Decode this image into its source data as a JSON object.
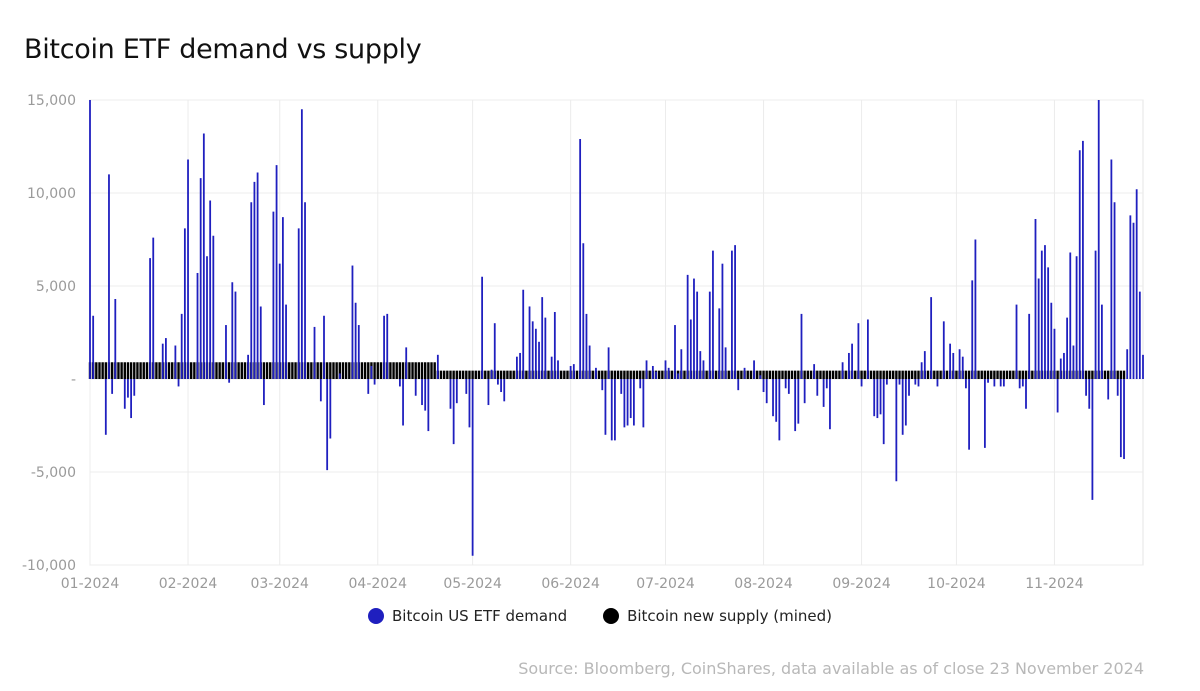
{
  "chart_data": {
    "type": "bar",
    "title": "Bitcoin ETF demand vs supply",
    "source": "Source: Bloomberg, CoinShares, data available as of close 23 November 2024",
    "ylim": [
      -10000,
      15000
    ],
    "y_ticks": [
      {
        "value": 15000,
        "label": "15,000"
      },
      {
        "value": 10000,
        "label": "10,000"
      },
      {
        "value": 5000,
        "label": "5,000"
      },
      {
        "value": 0,
        "label": "-"
      },
      {
        "value": -5000,
        "label": "-5,000"
      },
      {
        "value": -10000,
        "label": "-10,000"
      }
    ],
    "x_range": [
      "2024-01-01",
      "2024-11-23"
    ],
    "x_ticks": [
      {
        "date": "2024-01-01",
        "label": "01-2024"
      },
      {
        "date": "2024-02-01",
        "label": "02-2024"
      },
      {
        "date": "2024-03-01",
        "label": "03-2024"
      },
      {
        "date": "2024-04-01",
        "label": "04-2024"
      },
      {
        "date": "2024-05-01",
        "label": "05-2024"
      },
      {
        "date": "2024-06-01",
        "label": "06-2024"
      },
      {
        "date": "2024-07-01",
        "label": "07-2024"
      },
      {
        "date": "2024-08-01",
        "label": "08-2024"
      },
      {
        "date": "2024-09-01",
        "label": "09-2024"
      },
      {
        "date": "2024-10-01",
        "label": "10-2024"
      },
      {
        "date": "2024-11-01",
        "label": "11-2024"
      }
    ],
    "series": [
      {
        "name": "Bitcoin US ETF demand",
        "color": "#1f1fbf",
        "points": [
          [
            "2024-01-01",
            15000
          ],
          [
            "2024-01-02",
            3400
          ],
          [
            "2024-01-06",
            -3000
          ],
          [
            "2024-01-07",
            11000
          ],
          [
            "2024-01-08",
            -800
          ],
          [
            "2024-01-09",
            4300
          ],
          [
            "2024-01-12",
            -1600
          ],
          [
            "2024-01-13",
            -1000
          ],
          [
            "2024-01-14",
            -2100
          ],
          [
            "2024-01-15",
            -900
          ],
          [
            "2024-01-20",
            6500
          ],
          [
            "2024-01-21",
            7600
          ],
          [
            "2024-01-24",
            1900
          ],
          [
            "2024-01-25",
            2200
          ],
          [
            "2024-01-28",
            1800
          ],
          [
            "2024-01-29",
            -400
          ],
          [
            "2024-01-30",
            3500
          ],
          [
            "2024-01-31",
            8100
          ],
          [
            "2024-02-01",
            11800
          ],
          [
            "2024-02-04",
            5700
          ],
          [
            "2024-02-05",
            10800
          ],
          [
            "2024-02-06",
            13200
          ],
          [
            "2024-02-07",
            6600
          ],
          [
            "2024-02-08",
            9600
          ],
          [
            "2024-02-09",
            7700
          ],
          [
            "2024-02-13",
            2900
          ],
          [
            "2024-02-14",
            -200
          ],
          [
            "2024-02-15",
            5200
          ],
          [
            "2024-02-16",
            4700
          ],
          [
            "2024-02-20",
            1300
          ],
          [
            "2024-02-21",
            9500
          ],
          [
            "2024-02-22",
            10600
          ],
          [
            "2024-02-23",
            11100
          ],
          [
            "2024-02-24",
            3900
          ],
          [
            "2024-02-25",
            -1400
          ],
          [
            "2024-02-28",
            9000
          ],
          [
            "2024-02-29",
            11500
          ],
          [
            "2024-03-01",
            6200
          ],
          [
            "2024-03-02",
            8700
          ],
          [
            "2024-03-03",
            4000
          ],
          [
            "2024-03-07",
            8100
          ],
          [
            "2024-03-08",
            14500
          ],
          [
            "2024-03-09",
            9500
          ],
          [
            "2024-03-12",
            2800
          ],
          [
            "2024-03-14",
            -1200
          ],
          [
            "2024-03-15",
            3400
          ],
          [
            "2024-03-16",
            -4900
          ],
          [
            "2024-03-17",
            -3200
          ],
          [
            "2024-03-20",
            300
          ],
          [
            "2024-03-24",
            6100
          ],
          [
            "2024-03-25",
            4100
          ],
          [
            "2024-03-26",
            2900
          ],
          [
            "2024-03-29",
            -800
          ],
          [
            "2024-03-30",
            700
          ],
          [
            "2024-03-31",
            -300
          ],
          [
            "2024-04-03",
            3400
          ],
          [
            "2024-04-04",
            3500
          ],
          [
            "2024-04-08",
            -400
          ],
          [
            "2024-04-09",
            -2500
          ],
          [
            "2024-04-10",
            1700
          ],
          [
            "2024-04-13",
            -900
          ],
          [
            "2024-04-15",
            -1400
          ],
          [
            "2024-04-16",
            -1700
          ],
          [
            "2024-04-17",
            -2800
          ],
          [
            "2024-04-20",
            1300
          ],
          [
            "2024-04-24",
            -1600
          ],
          [
            "2024-04-25",
            -3500
          ],
          [
            "2024-04-26",
            -1300
          ],
          [
            "2024-04-29",
            -800
          ],
          [
            "2024-04-30",
            -2600
          ],
          [
            "2024-05-01",
            -9500
          ],
          [
            "2024-05-04",
            5500
          ],
          [
            "2024-05-06",
            -1400
          ],
          [
            "2024-05-07",
            500
          ],
          [
            "2024-05-08",
            3000
          ],
          [
            "2024-05-09",
            -300
          ],
          [
            "2024-05-10",
            -700
          ],
          [
            "2024-05-11",
            -1200
          ],
          [
            "2024-05-15",
            1200
          ],
          [
            "2024-05-16",
            1400
          ],
          [
            "2024-05-17",
            4800
          ],
          [
            "2024-05-19",
            3900
          ],
          [
            "2024-05-20",
            3100
          ],
          [
            "2024-05-21",
            2700
          ],
          [
            "2024-05-22",
            2000
          ],
          [
            "2024-05-23",
            4400
          ],
          [
            "2024-05-24",
            3300
          ],
          [
            "2024-05-26",
            1200
          ],
          [
            "2024-05-27",
            3600
          ],
          [
            "2024-05-28",
            1000
          ],
          [
            "2024-06-01",
            700
          ],
          [
            "2024-06-02",
            800
          ],
          [
            "2024-06-04",
            12900
          ],
          [
            "2024-06-05",
            7300
          ],
          [
            "2024-06-06",
            3500
          ],
          [
            "2024-06-07",
            1800
          ],
          [
            "2024-06-09",
            600
          ],
          [
            "2024-06-11",
            -600
          ],
          [
            "2024-06-12",
            -3000
          ],
          [
            "2024-06-13",
            1700
          ],
          [
            "2024-06-14",
            -3300
          ],
          [
            "2024-06-15",
            -3300
          ],
          [
            "2024-06-17",
            -800
          ],
          [
            "2024-06-18",
            -2600
          ],
          [
            "2024-06-19",
            -2500
          ],
          [
            "2024-06-20",
            -2100
          ],
          [
            "2024-06-21",
            -2500
          ],
          [
            "2024-06-23",
            -500
          ],
          [
            "2024-06-24",
            -2600
          ],
          [
            "2024-06-25",
            1000
          ],
          [
            "2024-06-27",
            700
          ],
          [
            "2024-06-28",
            400
          ],
          [
            "2024-07-01",
            1000
          ],
          [
            "2024-07-02",
            600
          ],
          [
            "2024-07-04",
            2900
          ],
          [
            "2024-07-05",
            300
          ],
          [
            "2024-07-06",
            1600
          ],
          [
            "2024-07-08",
            5600
          ],
          [
            "2024-07-09",
            3200
          ],
          [
            "2024-07-10",
            5400
          ],
          [
            "2024-07-11",
            4700
          ],
          [
            "2024-07-12",
            1500
          ],
          [
            "2024-07-13",
            1000
          ],
          [
            "2024-07-15",
            4700
          ],
          [
            "2024-07-16",
            6900
          ],
          [
            "2024-07-18",
            3800
          ],
          [
            "2024-07-19",
            6200
          ],
          [
            "2024-07-20",
            1700
          ],
          [
            "2024-07-22",
            6900
          ],
          [
            "2024-07-23",
            7200
          ],
          [
            "2024-07-24",
            -600
          ],
          [
            "2024-07-26",
            600
          ],
          [
            "2024-07-29",
            1000
          ],
          [
            "2024-07-31",
            200
          ],
          [
            "2024-08-01",
            -700
          ],
          [
            "2024-08-02",
            -1300
          ],
          [
            "2024-08-04",
            -2000
          ],
          [
            "2024-08-05",
            -2300
          ],
          [
            "2024-08-06",
            -3300
          ],
          [
            "2024-08-08",
            -500
          ],
          [
            "2024-08-09",
            -800
          ],
          [
            "2024-08-11",
            -2800
          ],
          [
            "2024-08-12",
            -2400
          ],
          [
            "2024-08-13",
            3500
          ],
          [
            "2024-08-14",
            -1300
          ],
          [
            "2024-08-17",
            800
          ],
          [
            "2024-08-18",
            -900
          ],
          [
            "2024-08-20",
            -1500
          ],
          [
            "2024-08-21",
            -500
          ],
          [
            "2024-08-22",
            -2700
          ],
          [
            "2024-08-26",
            900
          ],
          [
            "2024-08-28",
            1400
          ],
          [
            "2024-08-29",
            1900
          ],
          [
            "2024-08-31",
            3000
          ],
          [
            "2024-09-01",
            -400
          ],
          [
            "2024-09-03",
            3200
          ],
          [
            "2024-09-05",
            -2000
          ],
          [
            "2024-09-06",
            -2100
          ],
          [
            "2024-09-07",
            -1900
          ],
          [
            "2024-09-08",
            -3500
          ],
          [
            "2024-09-09",
            -300
          ],
          [
            "2024-09-12",
            -5500
          ],
          [
            "2024-09-13",
            -300
          ],
          [
            "2024-09-14",
            -3000
          ],
          [
            "2024-09-15",
            -2500
          ],
          [
            "2024-09-16",
            -900
          ],
          [
            "2024-09-18",
            -300
          ],
          [
            "2024-09-19",
            -400
          ],
          [
            "2024-09-20",
            900
          ],
          [
            "2024-09-21",
            1500
          ],
          [
            "2024-09-23",
            4400
          ],
          [
            "2024-09-25",
            -400
          ],
          [
            "2024-09-27",
            3100
          ],
          [
            "2024-09-29",
            1900
          ],
          [
            "2024-09-30",
            1400
          ],
          [
            "2024-10-02",
            1600
          ],
          [
            "2024-10-03",
            1200
          ],
          [
            "2024-10-04",
            -500
          ],
          [
            "2024-10-05",
            -3800
          ],
          [
            "2024-10-06",
            5300
          ],
          [
            "2024-10-07",
            7500
          ],
          [
            "2024-10-10",
            -3700
          ],
          [
            "2024-10-11",
            -200
          ],
          [
            "2024-10-13",
            -400
          ],
          [
            "2024-10-15",
            -400
          ],
          [
            "2024-10-16",
            -400
          ],
          [
            "2024-10-20",
            4000
          ],
          [
            "2024-10-21",
            -500
          ],
          [
            "2024-10-22",
            -400
          ],
          [
            "2024-10-23",
            -1600
          ],
          [
            "2024-10-24",
            3500
          ],
          [
            "2024-10-26",
            8600
          ],
          [
            "2024-10-27",
            5400
          ],
          [
            "2024-10-28",
            6900
          ],
          [
            "2024-10-29",
            7200
          ],
          [
            "2024-10-30",
            6000
          ],
          [
            "2024-10-31",
            4100
          ],
          [
            "2024-11-01",
            2700
          ],
          [
            "2024-11-02",
            -1800
          ],
          [
            "2024-11-03",
            1100
          ],
          [
            "2024-11-04",
            1400
          ],
          [
            "2024-11-05",
            3300
          ],
          [
            "2024-11-06",
            6800
          ],
          [
            "2024-11-07",
            1800
          ],
          [
            "2024-11-08",
            6600
          ],
          [
            "2024-11-09",
            12300
          ],
          [
            "2024-11-10",
            12800
          ],
          [
            "2024-11-11",
            -900
          ],
          [
            "2024-11-12",
            -1600
          ],
          [
            "2024-11-13",
            -6500
          ],
          [
            "2024-11-14",
            6900
          ],
          [
            "2024-11-15",
            15000
          ],
          [
            "2024-11-16",
            4000
          ],
          [
            "2024-11-18",
            -1100
          ],
          [
            "2024-11-19",
            11800
          ],
          [
            "2024-11-20",
            9500
          ],
          [
            "2024-11-21",
            -900
          ],
          [
            "2024-11-22",
            -4200
          ],
          [
            "2024-11-23",
            -4300
          ],
          [
            "2024-11-24",
            1600
          ],
          [
            "2024-11-25",
            8800
          ],
          [
            "2024-11-26",
            8400
          ],
          [
            "2024-11-27",
            10200
          ],
          [
            "2024-11-28",
            4700
          ],
          [
            "2024-11-29",
            1300
          ]
        ]
      },
      {
        "name": "Bitcoin new supply (mined)",
        "color": "#000000",
        "description": "Daily mined supply: ~900 BTC/day until the April 2024 halving, ~450 BTC/day after",
        "segments": [
          {
            "from": "2024-01-01",
            "to": "2024-04-19",
            "value": 900
          },
          {
            "from": "2024-04-20",
            "to": "2024-11-23",
            "value": 450
          }
        ]
      }
    ]
  },
  "legend": [
    {
      "label": "Bitcoin US ETF demand",
      "color": "#1f1fbf"
    },
    {
      "label": "Bitcoin new supply (mined)",
      "color": "#000000"
    }
  ]
}
